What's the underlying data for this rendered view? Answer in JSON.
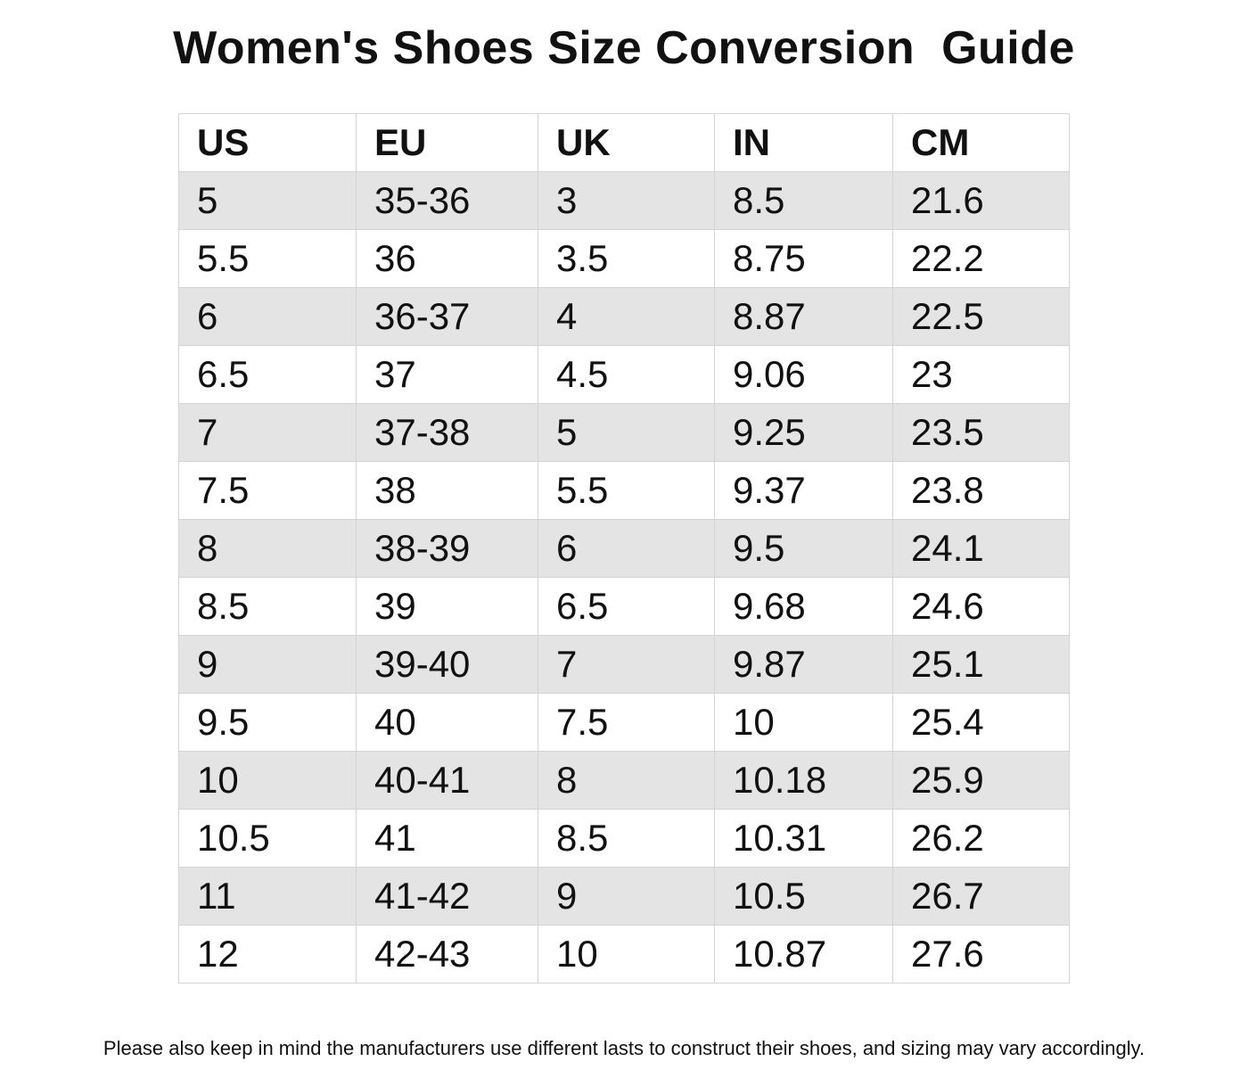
{
  "header": {
    "title": "Women's Shoes Size Conversion  Guide"
  },
  "table": {
    "columns": [
      "US",
      "EU",
      "UK",
      "IN",
      "CM"
    ],
    "rows": [
      [
        "5",
        "35-36",
        "3",
        "8.5",
        "21.6"
      ],
      [
        "5.5",
        "36",
        "3.5",
        "8.75",
        "22.2"
      ],
      [
        "6",
        "36-37",
        "4",
        "8.87",
        "22.5"
      ],
      [
        "6.5",
        "37",
        "4.5",
        "9.06",
        "23"
      ],
      [
        "7",
        "37-38",
        "5",
        "9.25",
        "23.5"
      ],
      [
        "7.5",
        "38",
        "5.5",
        "9.37",
        "23.8"
      ],
      [
        "8",
        "38-39",
        "6",
        "9.5",
        "24.1"
      ],
      [
        "8.5",
        "39",
        "6.5",
        "9.68",
        "24.6"
      ],
      [
        "9",
        "39-40",
        "7",
        "9.87",
        "25.1"
      ],
      [
        "9.5",
        "40",
        "7.5",
        "10",
        "25.4"
      ],
      [
        "10",
        "40-41",
        "8",
        "10.18",
        "25.9"
      ],
      [
        "10.5",
        "41",
        "8.5",
        "10.31",
        "26.2"
      ],
      [
        "11",
        "41-42",
        "9",
        "10.5",
        "26.7"
      ],
      [
        "12",
        "42-43",
        "10",
        "10.87",
        "27.6"
      ]
    ]
  },
  "footer": {
    "note": "Please also keep in mind the manufacturers use different lasts to construct their shoes, and sizing may vary accordingly."
  }
}
